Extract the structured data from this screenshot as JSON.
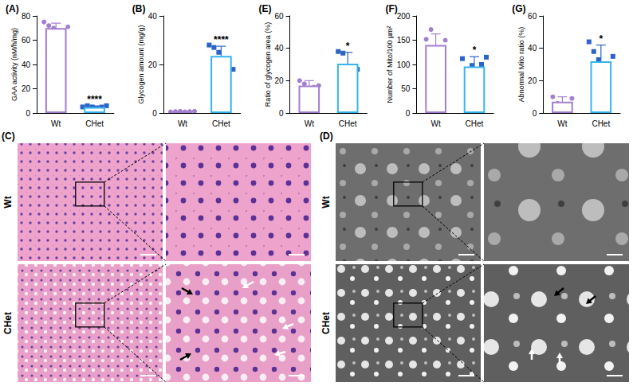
{
  "chart_data": [
    {
      "type": "bar",
      "panel": "(A)",
      "ylabel": "GAA activity (nM/h/mg)",
      "categories": [
        "Wt",
        "CHet"
      ],
      "values": [
        70,
        5
      ],
      "errors": [
        4,
        0.8
      ],
      "points": [
        [
          75,
          72,
          70,
          68,
          65,
          71
        ],
        [
          5,
          6,
          5,
          4,
          5,
          6
        ]
      ],
      "colors": [
        "#a27fcf",
        "#35b5ee"
      ],
      "annotation": "****",
      "annotation_at": "CHet",
      "ylim": [
        0,
        80
      ],
      "yticks": [
        0,
        20,
        40,
        60,
        80
      ],
      "grid": false
    },
    {
      "type": "bar",
      "panel": "(B)",
      "ylabel": "Glycogen amount (mg/g)",
      "categories": [
        "Wt",
        "CHet"
      ],
      "values": [
        0.6,
        23.5
      ],
      "errors": [
        0.2,
        4
      ],
      "points": [
        [
          0.5,
          0.6,
          0.7,
          0.5,
          0.6,
          0.7
        ],
        [
          28,
          27,
          25,
          22,
          19,
          18
        ]
      ],
      "colors": [
        "#a27fcf",
        "#35b5ee"
      ],
      "annotation": "****",
      "annotation_at": "CHet",
      "ylim": [
        0,
        40
      ],
      "yticks": [
        0,
        20,
        40
      ],
      "grid": false
    },
    {
      "type": "bar",
      "panel": "(E)",
      "ylabel": "Ratio of glycogen area (%)",
      "categories": [
        "Wt",
        "CHet"
      ],
      "values": [
        17,
        30.5
      ],
      "errors": [
        3,
        7
      ],
      "points": [
        [
          20,
          18,
          14,
          16,
          17
        ],
        [
          38,
          37,
          26,
          25,
          27
        ]
      ],
      "colors": [
        "#a27fcf",
        "#35b5ee"
      ],
      "annotation": "*",
      "annotation_at": "CHet",
      "ylim": [
        0,
        60
      ],
      "yticks": [
        0,
        20,
        40,
        60
      ],
      "grid": false
    },
    {
      "type": "bar",
      "panel": "(F)",
      "ylabel": "Number of Mito/100 µm²",
      "categories": [
        "Wt",
        "CHet"
      ],
      "values": [
        140,
        96
      ],
      "errors": [
        23,
        20
      ],
      "points": [
        [
          152,
          172,
          128,
          118,
          150
        ],
        [
          112,
          75,
          98,
          76,
          100,
          115
        ]
      ],
      "colors": [
        "#a27fcf",
        "#35b5ee"
      ],
      "annotation": "*",
      "annotation_at": "CHet",
      "ylim": [
        0,
        200
      ],
      "yticks": [
        0,
        50,
        100,
        150,
        200
      ],
      "grid": false
    },
    {
      "type": "bar",
      "panel": "(G)",
      "ylabel": "Abnormal Mito ratio (%)",
      "categories": [
        "Wt",
        "CHet"
      ],
      "values": [
        7,
        32
      ],
      "errors": [
        3,
        10
      ],
      "points": [
        [
          10,
          6,
          5,
          4,
          9
        ],
        [
          44,
          38,
          33,
          24,
          18,
          35
        ]
      ],
      "colors": [
        "#a27fcf",
        "#35b5ee"
      ],
      "annotation": "*",
      "annotation_at": "CHet",
      "ylim": [
        0,
        60
      ],
      "yticks": [
        0,
        20,
        40,
        60
      ],
      "grid": false
    }
  ],
  "image_panels": [
    {
      "panel": "(C)",
      "rows": [
        "Wt",
        "CHet"
      ]
    },
    {
      "panel": "(D)",
      "rows": [
        "Wt",
        "CHet"
      ]
    }
  ]
}
